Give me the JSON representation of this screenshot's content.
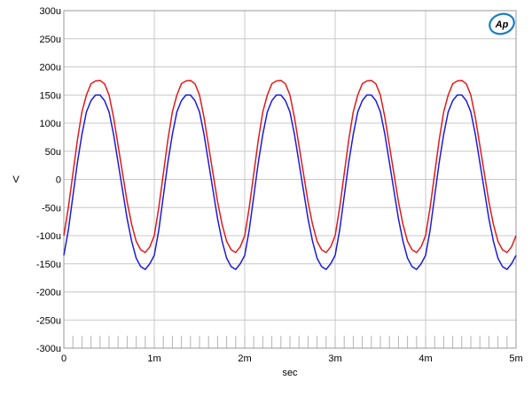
{
  "logo": {
    "text": "Ap",
    "color": "#1a7fc1"
  },
  "chart_data": {
    "type": "line",
    "title": "",
    "xlabel": "sec",
    "ylabel": "V",
    "xlim": [
      0,
      0.005
    ],
    "ylim": [
      -0.0003,
      0.0003
    ],
    "grid": true,
    "x_ticks": [
      {
        "value": 0,
        "label": "0"
      },
      {
        "value": 0.001,
        "label": "1m"
      },
      {
        "value": 0.002,
        "label": "2m"
      },
      {
        "value": 0.003,
        "label": "3m"
      },
      {
        "value": 0.004,
        "label": "4m"
      },
      {
        "value": 0.005,
        "label": "5m"
      }
    ],
    "y_ticks": [
      {
        "value": 0.0003,
        "label": "300u"
      },
      {
        "value": 0.00025,
        "label": "250u"
      },
      {
        "value": 0.0002,
        "label": "200u"
      },
      {
        "value": 0.00015,
        "label": "150u"
      },
      {
        "value": 0.0001,
        "label": "100u"
      },
      {
        "value": 5e-05,
        "label": "50u"
      },
      {
        "value": 0,
        "label": "0"
      },
      {
        "value": -5e-05,
        "label": "-50u"
      },
      {
        "value": -0.0001,
        "label": "-100u"
      },
      {
        "value": -0.00015,
        "label": "-150u"
      },
      {
        "value": -0.0002,
        "label": "-200u"
      },
      {
        "value": -0.00025,
        "label": "-250u"
      },
      {
        "value": -0.0003,
        "label": "-300u"
      }
    ],
    "series": [
      {
        "color": "#e01b1b",
        "x": [
          0,
          5e-05,
          0.0001,
          0.00015,
          0.0002,
          0.00025,
          0.0003,
          0.00035,
          0.0004,
          0.00045,
          0.0005,
          0.00055,
          0.0006,
          0.00065,
          0.0007,
          0.00075,
          0.0008,
          0.00085,
          0.0009,
          0.00095,
          0.001,
          0.00105,
          0.0011,
          0.00115,
          0.0012,
          0.00125,
          0.0013,
          0.00135,
          0.0014,
          0.00145,
          0.0015,
          0.00155,
          0.0016,
          0.00165,
          0.0017,
          0.00175,
          0.0018,
          0.00185,
          0.0019,
          0.00195,
          0.002,
          0.00205,
          0.0021,
          0.00215,
          0.0022,
          0.00225,
          0.0023,
          0.00235,
          0.0024,
          0.00245,
          0.0025,
          0.00255,
          0.0026,
          0.00265,
          0.0027,
          0.00275,
          0.0028,
          0.00285,
          0.0029,
          0.00295,
          0.003,
          0.00305,
          0.0031,
          0.00315,
          0.0032,
          0.00325,
          0.0033,
          0.00335,
          0.0034,
          0.00345,
          0.0035,
          0.00355,
          0.0036,
          0.00365,
          0.0037,
          0.00375,
          0.0038,
          0.00385,
          0.0039,
          0.00395,
          0.004,
          0.00405,
          0.0041,
          0.00415,
          0.0042,
          0.00425,
          0.0043,
          0.00435,
          0.0044,
          0.00445,
          0.0045,
          0.00455,
          0.0046,
          0.00465,
          0.0047,
          0.00475,
          0.0048,
          0.00485,
          0.0049,
          0.00495,
          0.005
        ],
        "y": [
          -0.0001,
          -5e-05,
          1e-05,
          7e-05,
          0.00012,
          0.00015,
          0.00017,
          0.000175,
          0.000176,
          0.00017,
          0.00015,
          0.00011,
          6e-05,
          1e-05,
          -4e-05,
          -8e-05,
          -0.00011,
          -0.000125,
          -0.00013,
          -0.00012,
          -0.0001,
          -5e-05,
          1e-05,
          7e-05,
          0.00012,
          0.00015,
          0.00017,
          0.000175,
          0.000176,
          0.00017,
          0.00015,
          0.00011,
          6e-05,
          1e-05,
          -4e-05,
          -8e-05,
          -0.00011,
          -0.000125,
          -0.00013,
          -0.00012,
          -0.0001,
          -5e-05,
          1e-05,
          7e-05,
          0.00012,
          0.00015,
          0.00017,
          0.000175,
          0.000176,
          0.00017,
          0.00015,
          0.00011,
          6e-05,
          1e-05,
          -4e-05,
          -8e-05,
          -0.00011,
          -0.000125,
          -0.00013,
          -0.00012,
          -0.0001,
          -5e-05,
          1e-05,
          7e-05,
          0.00012,
          0.00015,
          0.00017,
          0.000175,
          0.000176,
          0.00017,
          0.00015,
          0.00011,
          6e-05,
          1e-05,
          -4e-05,
          -8e-05,
          -0.00011,
          -0.000125,
          -0.00013,
          -0.00012,
          -0.0001,
          -5e-05,
          1e-05,
          7e-05,
          0.00012,
          0.00015,
          0.00017,
          0.000175,
          0.000176,
          0.00017,
          0.00015,
          0.00011,
          6e-05,
          1e-05,
          -4e-05,
          -8e-05,
          -0.00011,
          -0.000125,
          -0.00013,
          -0.00012,
          -0.0001
        ]
      },
      {
        "color": "#1c1cd9",
        "x": [
          0,
          5e-05,
          0.0001,
          0.00015,
          0.0002,
          0.00025,
          0.0003,
          0.00035,
          0.0004,
          0.00045,
          0.0005,
          0.00055,
          0.0006,
          0.00065,
          0.0007,
          0.00075,
          0.0008,
          0.00085,
          0.0009,
          0.00095,
          0.001,
          0.00105,
          0.0011,
          0.00115,
          0.0012,
          0.00125,
          0.0013,
          0.00135,
          0.0014,
          0.00145,
          0.0015,
          0.00155,
          0.0016,
          0.00165,
          0.0017,
          0.00175,
          0.0018,
          0.00185,
          0.0019,
          0.00195,
          0.002,
          0.00205,
          0.0021,
          0.00215,
          0.0022,
          0.00225,
          0.0023,
          0.00235,
          0.0024,
          0.00245,
          0.0025,
          0.00255,
          0.0026,
          0.00265,
          0.0027,
          0.00275,
          0.0028,
          0.00285,
          0.0029,
          0.00295,
          0.003,
          0.00305,
          0.0031,
          0.00315,
          0.0032,
          0.00325,
          0.0033,
          0.00335,
          0.0034,
          0.00345,
          0.0035,
          0.00355,
          0.0036,
          0.00365,
          0.0037,
          0.00375,
          0.0038,
          0.00385,
          0.0039,
          0.00395,
          0.004,
          0.00405,
          0.0041,
          0.00415,
          0.0042,
          0.00425,
          0.0043,
          0.00435,
          0.0044,
          0.00445,
          0.0045,
          0.00455,
          0.0046,
          0.00465,
          0.0047,
          0.00475,
          0.0048,
          0.00485,
          0.0049,
          0.00495,
          0.005
        ],
        "y": [
          -0.000135,
          -9e-05,
          -3e-05,
          3e-05,
          8e-05,
          0.00012,
          0.00014,
          0.00015,
          0.00015,
          0.00014,
          0.00012,
          8e-05,
          3e-05,
          -2e-05,
          -7e-05,
          -0.00011,
          -0.00014,
          -0.000155,
          -0.00016,
          -0.00015,
          -0.000135,
          -9e-05,
          -3e-05,
          3e-05,
          8e-05,
          0.00012,
          0.00014,
          0.00015,
          0.00015,
          0.00014,
          0.00012,
          8e-05,
          3e-05,
          -2e-05,
          -7e-05,
          -0.00011,
          -0.00014,
          -0.000155,
          -0.00016,
          -0.00015,
          -0.000135,
          -9e-05,
          -3e-05,
          3e-05,
          8e-05,
          0.00012,
          0.00014,
          0.00015,
          0.00015,
          0.00014,
          0.00012,
          8e-05,
          3e-05,
          -2e-05,
          -7e-05,
          -0.00011,
          -0.00014,
          -0.000155,
          -0.00016,
          -0.00015,
          -0.000135,
          -9e-05,
          -3e-05,
          3e-05,
          8e-05,
          0.00012,
          0.00014,
          0.00015,
          0.00015,
          0.00014,
          0.00012,
          8e-05,
          3e-05,
          -2e-05,
          -7e-05,
          -0.00011,
          -0.00014,
          -0.000155,
          -0.00016,
          -0.00015,
          -0.000135,
          -9e-05,
          -3e-05,
          3e-05,
          8e-05,
          0.00012,
          0.00014,
          0.00015,
          0.00015,
          0.00014,
          0.00012,
          8e-05,
          3e-05,
          -2e-05,
          -7e-05,
          -0.00011,
          -0.00014,
          -0.000155,
          -0.00016,
          -0.00015,
          -0.000135
        ]
      }
    ]
  }
}
